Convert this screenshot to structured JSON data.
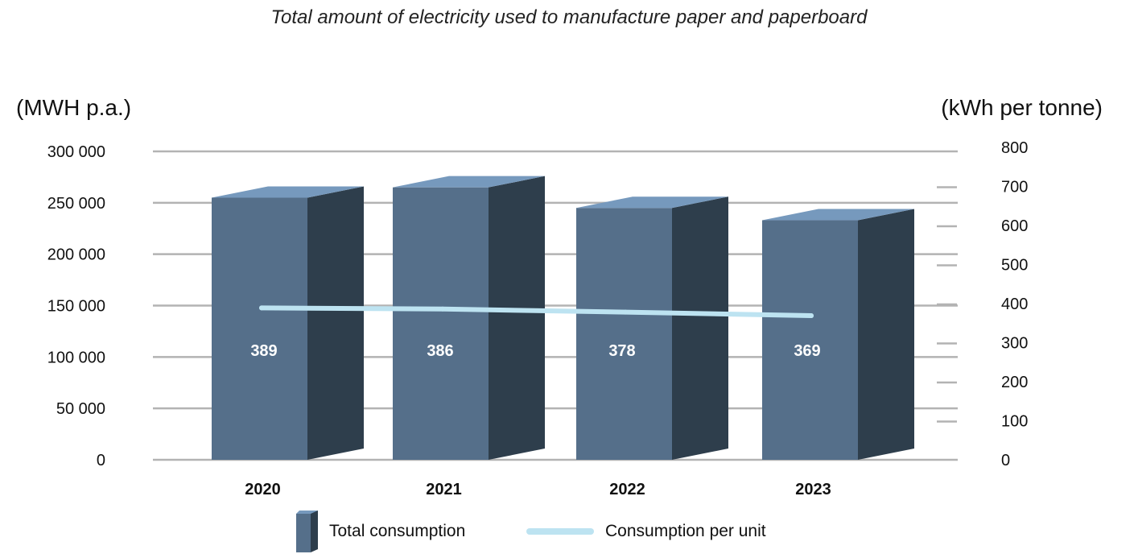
{
  "chart_data": {
    "type": "bar",
    "title": "Total amount of electricity used to manufacture paper and paperboard",
    "y_left_label": "(MWH p.a.)",
    "y_right_label": "(kWh per tonne)",
    "categories": [
      "2020",
      "2021",
      "2022",
      "2023"
    ],
    "series": [
      {
        "name": "Total consumption",
        "type": "bar",
        "axis": "left",
        "values": [
          255000,
          265000,
          245000,
          233000
        ]
      },
      {
        "name": "Consumption per unit",
        "type": "line",
        "axis": "right",
        "values": [
          389,
          386,
          378,
          369
        ]
      }
    ],
    "y_left_ticks": [
      "0",
      "50 000",
      "100 000",
      "150 000",
      "200 000",
      "250 000",
      "300 000"
    ],
    "y_left_lim": [
      0,
      300000
    ],
    "y_right_ticks": [
      "0",
      "100",
      "200",
      "300",
      "400",
      "500",
      "600",
      "700",
      "800"
    ],
    "y_right_lim": [
      0,
      800
    ],
    "data_labels": [
      "389",
      "386",
      "378",
      "369"
    ],
    "grid": true,
    "legend_position": "bottom",
    "colors": {
      "bar_front": "#556f8a",
      "bar_side": "#2e3e4c",
      "bar_top": "#7699bd",
      "line": "#bde3f1",
      "grid": "#b3b3b3"
    }
  }
}
